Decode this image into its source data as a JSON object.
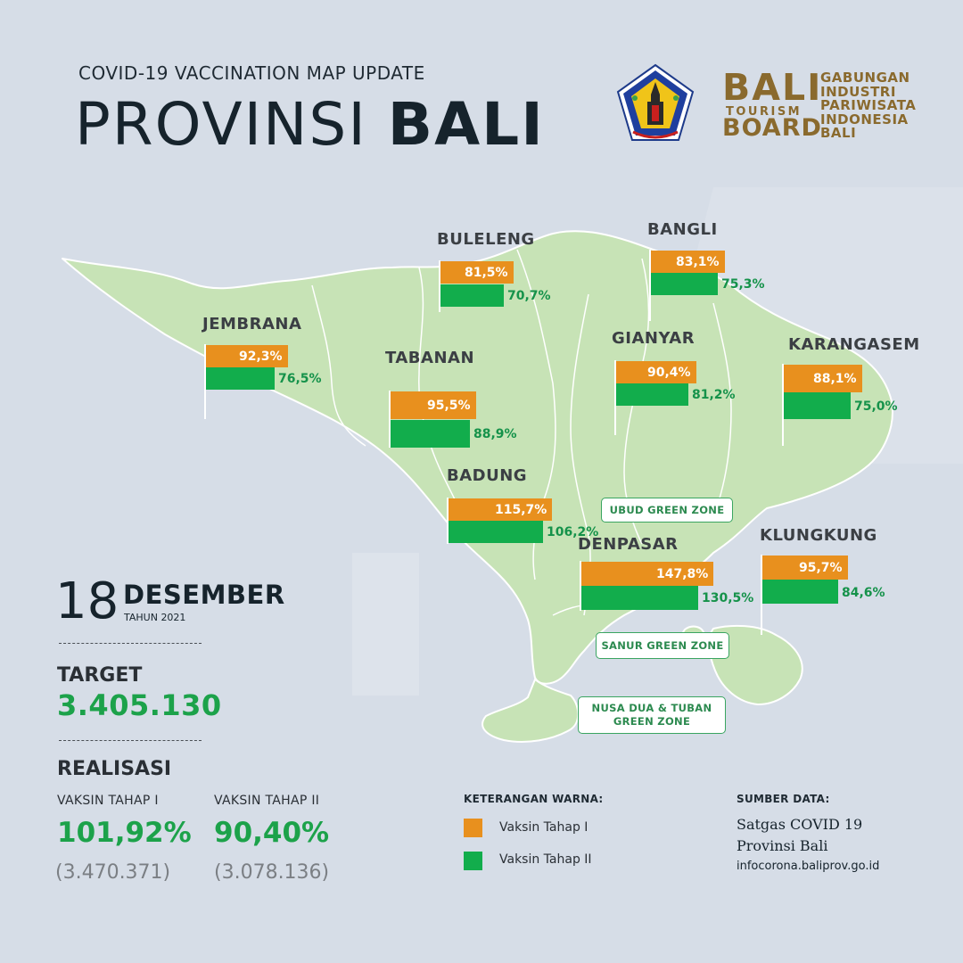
{
  "header": {
    "subtitle": "COVID-19 VACCINATION MAP UPDATE",
    "title_light": "PROVINSI ",
    "title_bold": "BALI"
  },
  "logos": {
    "tourism_board": {
      "line1": "BALI",
      "line2": "TOURISM",
      "line3": "BOARD"
    },
    "gipi": [
      "GABUNGAN",
      "INDUSTRI",
      "PARIWISATA",
      "INDONESIA",
      "BALI"
    ]
  },
  "regions": [
    {
      "name": "BULELENG",
      "tahap1": "81,5%",
      "tahap2": "70,7%",
      "v1": 81.5,
      "v2": 70.7
    },
    {
      "name": "BANGLI",
      "tahap1": "83,1%",
      "tahap2": "75,3%",
      "v1": 83.1,
      "v2": 75.3
    },
    {
      "name": "JEMBRANA",
      "tahap1": "92,3%",
      "tahap2": "76,5%",
      "v1": 92.3,
      "v2": 76.5
    },
    {
      "name": "TABANAN",
      "tahap1": "95,5%",
      "tahap2": "88,9%",
      "v1": 95.5,
      "v2": 88.9
    },
    {
      "name": "GIANYAR",
      "tahap1": "90,4%",
      "tahap2": "81,2%",
      "v1": 90.4,
      "v2": 81.2
    },
    {
      "name": "KARANGASEM",
      "tahap1": "88,1%",
      "tahap2": "75,0%",
      "v1": 88.1,
      "v2": 75.0
    },
    {
      "name": "BADUNG",
      "tahap1": "115,7%",
      "tahap2": "106,2%",
      "v1": 115.7,
      "v2": 106.2
    },
    {
      "name": "DENPASAR",
      "tahap1": "147,8%",
      "tahap2": "130,5%",
      "v1": 147.8,
      "v2": 130.5
    },
    {
      "name": "KLUNGKUNG",
      "tahap1": "95,7%",
      "tahap2": "84,6%",
      "v1": 95.7,
      "v2": 84.6
    }
  ],
  "zones": [
    "UBUD GREEN ZONE",
    "SANUR GREEN ZONE",
    "NUSA DUA & TUBAN\nGREEN ZONE"
  ],
  "date": {
    "day": "18",
    "month": "DESEMBER",
    "year": "TAHUN 2021"
  },
  "target": {
    "label": "TARGET",
    "value": "3.405.130"
  },
  "realisasi": {
    "label": "REALISASI",
    "tahap1": {
      "label": "VAKSIN TAHAP I",
      "pct": "101,92%",
      "count": "(3.470.371)"
    },
    "tahap2": {
      "label": "VAKSIN TAHAP II",
      "pct": "90,40%",
      "count": "(3.078.136)"
    }
  },
  "legend": {
    "title": "KETERANGAN WARNA:",
    "items": [
      {
        "label": "Vaksin Tahap I",
        "color": "#e8901e"
      },
      {
        "label": "Vaksin Tahap II",
        "color": "#12ad4c"
      }
    ]
  },
  "source": {
    "title": "SUMBER DATA:",
    "line1": "Satgas COVID 19",
    "line2": "Provinsi Bali",
    "url": "infocorona.baliprov.go.id"
  },
  "colors": {
    "tahap1": "#e8901e",
    "tahap2": "#12ad4c",
    "land": "#c7e3b6"
  }
}
